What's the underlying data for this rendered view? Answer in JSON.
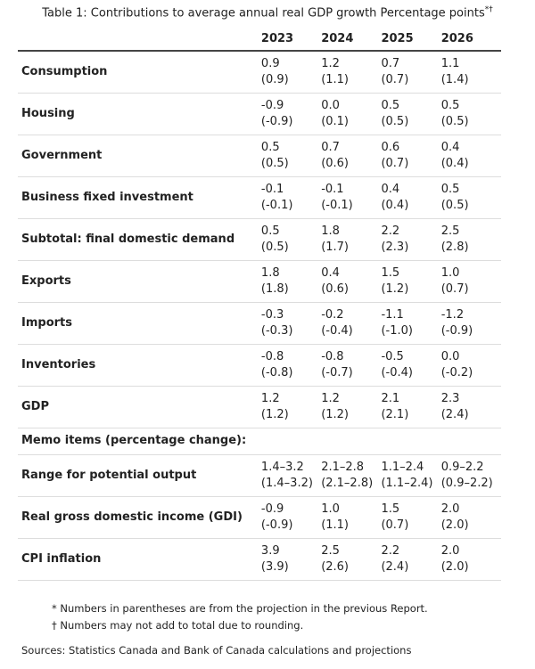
{
  "title": "Table 1: Contributions to average annual real GDP growth Percentage points",
  "title_marks": "*†",
  "years": [
    "2023",
    "2024",
    "2025",
    "2026"
  ],
  "rows": [
    {
      "label": "Consumption",
      "values": [
        [
          "0.9",
          "(0.9)"
        ],
        [
          "1.2",
          "(1.1)"
        ],
        [
          "0.7",
          "(0.7)"
        ],
        [
          "1.1",
          "(1.4)"
        ]
      ]
    },
    {
      "label": "Housing",
      "values": [
        [
          "-0.9",
          "(-0.9)"
        ],
        [
          "0.0",
          "(0.1)"
        ],
        [
          "0.5",
          "(0.5)"
        ],
        [
          "0.5",
          "(0.5)"
        ]
      ]
    },
    {
      "label": "Government",
      "values": [
        [
          "0.5",
          "(0.5)"
        ],
        [
          "0.7",
          "(0.6)"
        ],
        [
          "0.6",
          "(0.7)"
        ],
        [
          "0.4",
          "(0.4)"
        ]
      ]
    },
    {
      "label": "Business fixed investment",
      "values": [
        [
          "-0.1",
          "(-0.1)"
        ],
        [
          "-0.1",
          "(-0.1)"
        ],
        [
          "0.4",
          "(0.4)"
        ],
        [
          "0.5",
          "(0.5)"
        ]
      ]
    },
    {
      "label": "Subtotal: final domestic demand",
      "values": [
        [
          "0.5",
          "(0.5)"
        ],
        [
          "1.8",
          "(1.7)"
        ],
        [
          "2.2",
          "(2.3)"
        ],
        [
          "2.5",
          "(2.8)"
        ]
      ]
    },
    {
      "label": "Exports",
      "values": [
        [
          "1.8",
          "(1.8)"
        ],
        [
          "0.4",
          "(0.6)"
        ],
        [
          "1.5",
          "(1.2)"
        ],
        [
          "1.0",
          "(0.7)"
        ]
      ]
    },
    {
      "label": "Imports",
      "values": [
        [
          "-0.3",
          "(-0.3)"
        ],
        [
          "-0.2",
          "(-0.4)"
        ],
        [
          "-1.1",
          "(-1.0)"
        ],
        [
          "-1.2",
          "(-0.9)"
        ]
      ]
    },
    {
      "label": "Inventories",
      "values": [
        [
          "-0.8",
          "(-0.8)"
        ],
        [
          "-0.8",
          "(-0.7)"
        ],
        [
          "-0.5",
          "(-0.4)"
        ],
        [
          "0.0",
          "(-0.2)"
        ]
      ]
    },
    {
      "label": "GDP",
      "values": [
        [
          "1.2",
          "(1.2)"
        ],
        [
          "1.2",
          "(1.2)"
        ],
        [
          "2.1",
          "(2.1)"
        ],
        [
          "2.3",
          "(2.4)"
        ]
      ]
    }
  ],
  "memo_label": "Memo items (percentage change):",
  "memo_rows": [
    {
      "label": "Range for potential output",
      "values": [
        [
          "1.4–3.2",
          "(1.4–3.2)"
        ],
        [
          "2.1–2.8",
          "(2.1–2.8)"
        ],
        [
          "1.1–2.4",
          "(1.1–2.4)"
        ],
        [
          "0.9–2.2",
          "(0.9–2.2)"
        ]
      ]
    },
    {
      "label": "Real gross domestic income (GDI)",
      "values": [
        [
          "-0.9",
          "(-0.9)"
        ],
        [
          "1.0",
          "(1.1)"
        ],
        [
          "1.5",
          "(0.7)"
        ],
        [
          "2.0",
          "(2.0)"
        ]
      ]
    },
    {
      "label": "CPI inflation",
      "values": [
        [
          "3.9",
          "(3.9)"
        ],
        [
          "2.5",
          "(2.6)"
        ],
        [
          "2.2",
          "(2.4)"
        ],
        [
          "2.0",
          "(2.0)"
        ]
      ]
    }
  ],
  "notes": [
    "* Numbers in parentheses are from the projection in the previous Report.",
    "† Numbers may not add to total due to rounding."
  ],
  "sources": "Sources: Statistics Canada and Bank of Canada calculations and projections"
}
